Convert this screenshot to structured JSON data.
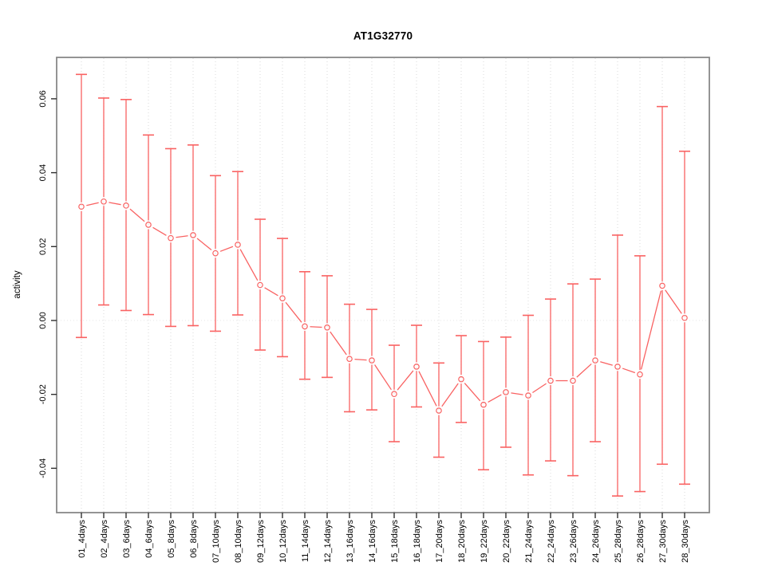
{
  "chart_data": {
    "type": "line",
    "title": "AT1G32770",
    "xlabel": "",
    "ylabel": "activity",
    "legend": null,
    "grid": "vertical-dotted-at-each-category-plus-dotted-zero-line",
    "marker": "open-circle",
    "error_bars": true,
    "categories": [
      "01_4days",
      "02_4days",
      "03_6days",
      "04_6days",
      "05_8days",
      "06_8days",
      "07_10days",
      "08_10days",
      "09_12days",
      "10_12days",
      "11_14days",
      "12_14days",
      "13_16days",
      "14_16days",
      "15_18days",
      "16_18days",
      "17_20days",
      "18_20days",
      "19_22days",
      "20_22days",
      "21_24days",
      "22_24days",
      "23_26days",
      "24_26days",
      "25_28days",
      "26_28days",
      "27_30days",
      "28_30days"
    ],
    "series": [
      {
        "name": "activity",
        "values": [
          0.0308,
          0.0322,
          0.0311,
          0.0259,
          0.0223,
          0.0231,
          0.0182,
          0.0205,
          0.0096,
          0.006,
          -0.0016,
          -0.0019,
          -0.0104,
          -0.0108,
          -0.0199,
          -0.0125,
          -0.0244,
          -0.0159,
          -0.0228,
          -0.0194,
          -0.0203,
          -0.0163,
          -0.0163,
          -0.0108,
          -0.0125,
          -0.0146,
          0.0094,
          0.0007
        ],
        "error_upper": [
          0.0666,
          0.0602,
          0.0598,
          0.0502,
          0.0465,
          0.0475,
          0.0392,
          0.0403,
          0.0274,
          0.0222,
          0.0132,
          0.0121,
          0.0044,
          0.003,
          -0.0067,
          -0.0013,
          -0.0115,
          -0.0041,
          -0.0057,
          -0.0045,
          0.0014,
          0.0058,
          0.0099,
          0.0112,
          0.0231,
          0.0175,
          0.0579,
          0.0458
        ],
        "error_lower": [
          -0.0046,
          0.0042,
          0.0027,
          0.0016,
          -0.0016,
          -0.0014,
          -0.0029,
          0.0015,
          -0.008,
          -0.0098,
          -0.0159,
          -0.0154,
          -0.0247,
          -0.0242,
          -0.0328,
          -0.0234,
          -0.037,
          -0.0276,
          -0.0404,
          -0.0343,
          -0.0418,
          -0.038,
          -0.042,
          -0.0328,
          -0.0475,
          -0.0463,
          -0.0389,
          -0.0443
        ]
      }
    ],
    "yticks": [
      -0.04,
      -0.02,
      0,
      0.02,
      0.04,
      0.06
    ],
    "ytick_labels": [
      "-0.04",
      "-0.02",
      "0.00",
      "0.02",
      "0.04",
      "0.06"
    ],
    "ylim": [
      -0.052,
      0.0712
    ],
    "zero_line": 0,
    "legend_position": "none",
    "colors": {
      "series": "#f96262",
      "grid": "#dcdcdc",
      "zero_line": "#e6e6e6",
      "box": "#888888",
      "tick": "#2f2f2f",
      "text": "#000000",
      "background": "#ffffff"
    }
  }
}
